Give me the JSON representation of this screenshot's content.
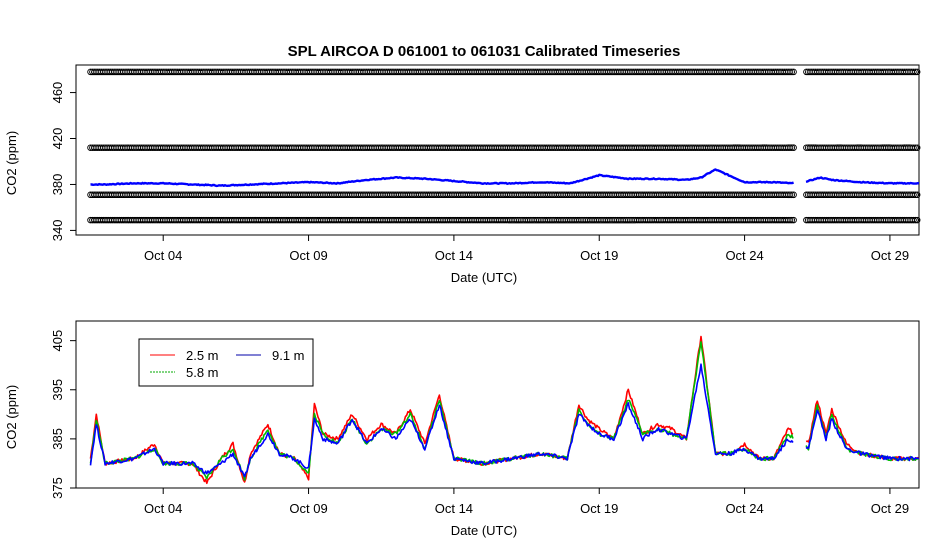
{
  "chart_data": [
    {
      "type": "line",
      "title": "SPL   AIRCOA  D    061001  to  061031   Calibrated Timeseries",
      "xlabel": "Date (UTC)",
      "ylabel": "CO2 (ppm)",
      "x_ticks": [
        "Oct 04",
        "Oct 09",
        "Oct 14",
        "Oct 19",
        "Oct 24",
        "Oct 29"
      ],
      "y_ticks": [
        "340",
        "380",
        "420",
        "460"
      ],
      "xlim": [
        "2006-10-01",
        "2006-10-30"
      ],
      "ylim": [
        336,
        484
      ],
      "data_gap": [
        "2006-10-25.7",
        "2006-10-26.1"
      ],
      "reference_gas_levels": [
        {
          "value": 478,
          "x_start": "2006-10-01.5"
        },
        {
          "value": 412,
          "x_start": "2006-10-01.5"
        },
        {
          "value": 371,
          "x_start": "2006-10-01.5"
        },
        {
          "value": 349,
          "x_start": "2006-10-01.5"
        }
      ],
      "series": [
        {
          "name": "9.1 m",
          "color": "#0000ff",
          "x": [
            "2006-10-01.5",
            "2006-10-02",
            "2006-10-03",
            "2006-10-04",
            "2006-10-05",
            "2006-10-06",
            "2006-10-07",
            "2006-10-08",
            "2006-10-09",
            "2006-10-10",
            "2006-10-11",
            "2006-10-12",
            "2006-10-13",
            "2006-10-14",
            "2006-10-15",
            "2006-10-16",
            "2006-10-17",
            "2006-10-18",
            "2006-10-19",
            "2006-10-20",
            "2006-10-21",
            "2006-10-22",
            "2006-10-22.5",
            "2006-10-23",
            "2006-10-24",
            "2006-10-25",
            "2006-10-25.6",
            "2006-10-26.2",
            "2006-10-26.6",
            "2006-10-27",
            "2006-10-28",
            "2006-10-29",
            "2006-10-30"
          ],
          "y": [
            380,
            380,
            381,
            381,
            380,
            379,
            380,
            381,
            382,
            381,
            384,
            386,
            385,
            383,
            381,
            381,
            382,
            381,
            388,
            385,
            385,
            384,
            386,
            393,
            382,
            382,
            381,
            383,
            386,
            384,
            382,
            381,
            381
          ]
        }
      ]
    },
    {
      "type": "line",
      "xlabel": "Date (UTC)",
      "ylabel": "CO2 (ppm)",
      "x_ticks": [
        "Oct 04",
        "Oct 09",
        "Oct 14",
        "Oct 19",
        "Oct 24",
        "Oct 29"
      ],
      "y_ticks": [
        "375",
        "385",
        "395",
        "405"
      ],
      "xlim": [
        "2006-10-01",
        "2006-10-30"
      ],
      "ylim": [
        375,
        409
      ],
      "data_gap": [
        "2006-10-25.7",
        "2006-10-26.1"
      ],
      "legend": {
        "entries": [
          "2.5 m",
          "9.1 m",
          "5.8 m"
        ],
        "placement": "top-left"
      },
      "series": [
        {
          "name": "2.5 m",
          "color": "#ff0000",
          "x": [
            "2006-10-01.5",
            "2006-10-01.7",
            "2006-10-02",
            "2006-10-03",
            "2006-10-03.7",
            "2006-10-04",
            "2006-10-05",
            "2006-10-05.5",
            "2006-10-06",
            "2006-10-06.4",
            "2006-10-06.8",
            "2006-10-07",
            "2006-10-07.6",
            "2006-10-08",
            "2006-10-08.5",
            "2006-10-09",
            "2006-10-09.2",
            "2006-10-09.5",
            "2006-10-10",
            "2006-10-10.5",
            "2006-10-11",
            "2006-10-11.5",
            "2006-10-12",
            "2006-10-12.5",
            "2006-10-13",
            "2006-10-13.5",
            "2006-10-14",
            "2006-10-15",
            "2006-10-16",
            "2006-10-17",
            "2006-10-17.9",
            "2006-10-18.3",
            "2006-10-18.6",
            "2006-10-19",
            "2006-10-19.5",
            "2006-10-20",
            "2006-10-20.5",
            "2006-10-21",
            "2006-10-21.5",
            "2006-10-22",
            "2006-10-22.5",
            "2006-10-23",
            "2006-10-23.5",
            "2006-10-24",
            "2006-10-24.5",
            "2006-10-25",
            "2006-10-25.5",
            "2006-10-26.2",
            "2006-10-26.5",
            "2006-10-26.8",
            "2006-10-27",
            "2006-10-27.5",
            "2006-10-28",
            "2006-10-29",
            "2006-10-30"
          ],
          "y": [
            381,
            390,
            380,
            381,
            384,
            380,
            380,
            376,
            381,
            384,
            376,
            382,
            388,
            382,
            381,
            377,
            392,
            386,
            385,
            390,
            385,
            388,
            386,
            391,
            384,
            394,
            381,
            380,
            381,
            382,
            381,
            392,
            389,
            387,
            385,
            395,
            386,
            388,
            387,
            385,
            406,
            382,
            382,
            384,
            381,
            381,
            387,
            384,
            393,
            386,
            391,
            384,
            382,
            381,
            381
          ]
        },
        {
          "name": "9.1 m",
          "color": "#0000ff",
          "x": [
            "2006-10-01.5",
            "2006-10-01.7",
            "2006-10-02",
            "2006-10-03",
            "2006-10-03.7",
            "2006-10-04",
            "2006-10-05",
            "2006-10-05.5",
            "2006-10-06",
            "2006-10-06.4",
            "2006-10-06.8",
            "2006-10-07",
            "2006-10-07.6",
            "2006-10-08",
            "2006-10-08.5",
            "2006-10-09",
            "2006-10-09.2",
            "2006-10-09.5",
            "2006-10-10",
            "2006-10-10.5",
            "2006-10-11",
            "2006-10-11.5",
            "2006-10-12",
            "2006-10-12.5",
            "2006-10-13",
            "2006-10-13.5",
            "2006-10-14",
            "2006-10-15",
            "2006-10-16",
            "2006-10-17",
            "2006-10-17.9",
            "2006-10-18.3",
            "2006-10-18.6",
            "2006-10-19",
            "2006-10-19.5",
            "2006-10-20",
            "2006-10-20.5",
            "2006-10-21",
            "2006-10-21.5",
            "2006-10-22",
            "2006-10-22.5",
            "2006-10-23",
            "2006-10-23.5",
            "2006-10-24",
            "2006-10-24.5",
            "2006-10-25",
            "2006-10-25.5",
            "2006-10-26.2",
            "2006-10-26.5",
            "2006-10-26.8",
            "2006-10-27",
            "2006-10-27.5",
            "2006-10-28",
            "2006-10-29",
            "2006-10-30"
          ],
          "y": [
            380,
            388,
            380,
            381,
            383,
            380,
            380,
            378,
            380,
            382,
            377,
            381,
            386,
            382,
            381,
            379,
            389,
            385,
            384,
            389,
            384,
            387,
            385,
            389,
            383,
            392,
            381,
            380,
            381,
            382,
            381,
            390,
            388,
            386,
            385,
            392,
            385,
            387,
            386,
            385,
            400,
            382,
            382,
            383,
            381,
            381,
            385,
            383,
            391,
            385,
            389,
            383,
            382,
            381,
            381
          ]
        },
        {
          "name": "5.8 m",
          "color": "#00bb00",
          "x": [
            "2006-10-01.5",
            "2006-10-01.7",
            "2006-10-02",
            "2006-10-03",
            "2006-10-03.7",
            "2006-10-04",
            "2006-10-05",
            "2006-10-05.5",
            "2006-10-06",
            "2006-10-06.4",
            "2006-10-06.8",
            "2006-10-07",
            "2006-10-07.6",
            "2006-10-08",
            "2006-10-08.5",
            "2006-10-09",
            "2006-10-09.2",
            "2006-10-09.5",
            "2006-10-10",
            "2006-10-10.5",
            "2006-10-11",
            "2006-10-11.5",
            "2006-10-12",
            "2006-10-12.5",
            "2006-10-13",
            "2006-10-13.5",
            "2006-10-14",
            "2006-10-15",
            "2006-10-16",
            "2006-10-17",
            "2006-10-17.9",
            "2006-10-18.3",
            "2006-10-18.6",
            "2006-10-19",
            "2006-10-19.5",
            "2006-10-20",
            "2006-10-20.5",
            "2006-10-21",
            "2006-10-21.5",
            "2006-10-22",
            "2006-10-22.5",
            "2006-10-23",
            "2006-10-23.5",
            "2006-10-24",
            "2006-10-24.5",
            "2006-10-25",
            "2006-10-25.5",
            "2006-10-26.2",
            "2006-10-26.5",
            "2006-10-26.8",
            "2006-10-27",
            "2006-10-27.5",
            "2006-10-28",
            "2006-10-29",
            "2006-10-30"
          ],
          "y": [
            380,
            389,
            380,
            381,
            383,
            380,
            380,
            377,
            381,
            383,
            377,
            381,
            387,
            382,
            381,
            378,
            390,
            386,
            384,
            389,
            384,
            387,
            386,
            390,
            383,
            393,
            381,
            380,
            381,
            382,
            381,
            391,
            388,
            386,
            385,
            393,
            386,
            387,
            386,
            385,
            405,
            382,
            382,
            383,
            381,
            381,
            386,
            383,
            392,
            385,
            390,
            383,
            382,
            381,
            381
          ]
        }
      ]
    }
  ]
}
